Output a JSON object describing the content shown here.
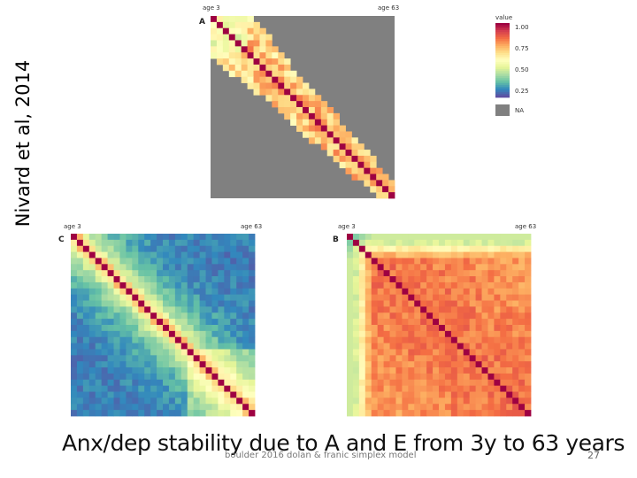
{
  "side_label": "Nivard et al, 2014",
  "caption": "Anx/dep stability due to A and E from 3y to 63 years",
  "footer": "boulder 2016 dolan & franic simplex model",
  "page_number": "27",
  "chart_data": {
    "type": "heatmap",
    "legend": {
      "title": "value",
      "ticks": [
        "1.00",
        "0.75",
        "0.50",
        "0.25"
      ],
      "na_label": "NA",
      "na_color": "#808080",
      "colors": [
        "#9e0142",
        "#d53e4f",
        "#f46d43",
        "#fdae61",
        "#fee08b",
        "#ffffbf",
        "#e6f598",
        "#abdda4",
        "#66c2a5",
        "#3288bd",
        "#5e4fa2"
      ]
    },
    "panels": [
      {
        "letter": "A",
        "x_start_label": "age 3",
        "x_end_label": "age 63",
        "size": 30,
        "pattern": "banded-with-na"
      },
      {
        "letter": "C",
        "x_start_label": "age 3",
        "x_end_label": "age 63",
        "size": 30,
        "pattern": "near-diagonal"
      },
      {
        "letter": "B",
        "x_start_label": "age 3",
        "x_end_label": "age 63",
        "size": 30,
        "pattern": "high-stability"
      }
    ]
  }
}
